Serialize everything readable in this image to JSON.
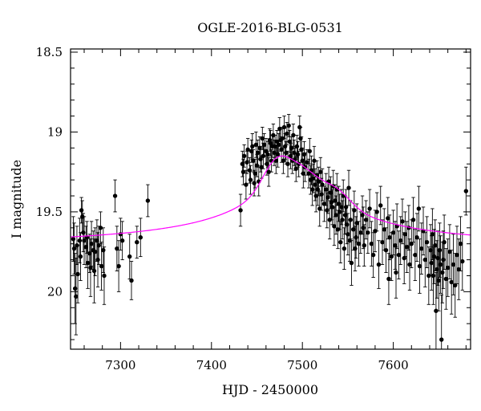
{
  "chart_data": {
    "type": "scatter",
    "title": "OGLE-2016-BLG-0531",
    "xlabel": "HJD - 2450000",
    "ylabel": "I magnitude",
    "xlim": [
      7245,
      7685
    ],
    "ylim": [
      20.36,
      18.48
    ],
    "y_inverted": true,
    "x_ticks": [
      7300,
      7400,
      7500,
      7600
    ],
    "y_ticks": [
      18.5,
      19,
      19.5,
      20
    ],
    "y_tick_labels": [
      "18.5",
      "19",
      "19.5",
      "20"
    ],
    "grid": false,
    "colors": {
      "points": "#000000",
      "model": "#ff00ff",
      "axes": "#000000"
    },
    "model_curve": {
      "name": "",
      "baseline": 19.665,
      "rise_amplitude": 0.52,
      "peak_time": 7495,
      "width_before": 40,
      "width_after": 35,
      "bump_amplitude": 0.13,
      "bump_time": 7470,
      "bump_width": 14,
      "shoulder_amplitude": 0.06,
      "shoulder_time": 7540,
      "shoulder_width": 14
    },
    "series": [
      {
        "name": "",
        "points": [
          [
            7248,
            19.67,
            0.14
          ],
          [
            7249,
            19.73,
            0.16
          ],
          [
            7250,
            19.98,
            0.22
          ],
          [
            7251,
            20.03,
            0.24
          ],
          [
            7252,
            19.71,
            0.12
          ],
          [
            7253,
            19.89,
            0.18
          ],
          [
            7255,
            19.68,
            0.14
          ],
          [
            7256,
            19.78,
            0.15
          ],
          [
            7257,
            19.49,
            0.08
          ],
          [
            7258,
            19.53,
            0.1
          ],
          [
            7259,
            19.63,
            0.12
          ],
          [
            7260,
            19.68,
            0.15
          ],
          [
            7262,
            19.72,
            0.13
          ],
          [
            7263,
            19.66,
            0.1
          ],
          [
            7264,
            19.82,
            0.16
          ],
          [
            7266,
            19.76,
            0.12
          ],
          [
            7267,
            19.85,
            0.18
          ],
          [
            7268,
            19.7,
            0.14
          ],
          [
            7270,
            19.74,
            0.12
          ],
          [
            7271,
            19.87,
            0.2
          ],
          [
            7272,
            19.75,
            0.15
          ],
          [
            7274,
            19.68,
            0.13
          ],
          [
            7275,
            19.8,
            0.17
          ],
          [
            7276,
            19.71,
            0.12
          ],
          [
            7278,
            19.6,
            0.1
          ],
          [
            7279,
            19.84,
            0.15
          ],
          [
            7281,
            19.74,
            0.14
          ],
          [
            7282,
            19.9,
            0.18
          ],
          [
            7294,
            19.4,
            0.1
          ],
          [
            7296,
            19.73,
            0.14
          ],
          [
            7298,
            19.84,
            0.16
          ],
          [
            7300,
            19.64,
            0.1
          ],
          [
            7302,
            19.68,
            0.12
          ],
          [
            7310,
            19.78,
            0.14
          ],
          [
            7312,
            19.93,
            0.12
          ],
          [
            7318,
            19.69,
            0.1
          ],
          [
            7322,
            19.66,
            0.12
          ],
          [
            7330,
            19.43,
            0.1
          ],
          [
            7432,
            19.49,
            0.1
          ],
          [
            7434,
            19.2,
            0.08
          ],
          [
            7435,
            19.25,
            0.08
          ],
          [
            7436,
            19.15,
            0.07
          ],
          [
            7438,
            19.33,
            0.09
          ],
          [
            7439,
            19.19,
            0.07
          ],
          [
            7440,
            19.11,
            0.07
          ],
          [
            7442,
            19.24,
            0.08
          ],
          [
            7443,
            19.3,
            0.09
          ],
          [
            7444,
            19.12,
            0.07
          ],
          [
            7445,
            19.09,
            0.08
          ],
          [
            7446,
            19.18,
            0.07
          ],
          [
            7447,
            19.32,
            0.08
          ],
          [
            7448,
            19.26,
            0.09
          ],
          [
            7449,
            19.08,
            0.08
          ],
          [
            7450,
            19.21,
            0.07
          ],
          [
            7451,
            19.13,
            0.08
          ],
          [
            7452,
            19.31,
            0.09
          ],
          [
            7453,
            19.1,
            0.07
          ],
          [
            7454,
            19.17,
            0.08
          ],
          [
            7455,
            19.22,
            0.07
          ],
          [
            7456,
            19.04,
            0.07
          ],
          [
            7457,
            19.15,
            0.08
          ],
          [
            7458,
            19.08,
            0.07
          ],
          [
            7460,
            19.12,
            0.08
          ],
          [
            7461,
            19.2,
            0.07
          ],
          [
            7462,
            19.14,
            0.08
          ],
          [
            7463,
            19.25,
            0.09
          ],
          [
            7464,
            19.05,
            0.07
          ],
          [
            7465,
            19.07,
            0.08
          ],
          [
            7466,
            19.18,
            0.07
          ],
          [
            7467,
            19.09,
            0.07
          ],
          [
            7468,
            19.02,
            0.07
          ],
          [
            7469,
            19.13,
            0.08
          ],
          [
            7470,
            19.09,
            0.07
          ],
          [
            7471,
            19.18,
            0.08
          ],
          [
            7472,
            19.06,
            0.07
          ],
          [
            7473,
            19.14,
            0.08
          ],
          [
            7474,
            19.08,
            0.07
          ],
          [
            7475,
            18.98,
            0.07
          ],
          [
            7476,
            19.05,
            0.07
          ],
          [
            7477,
            19.11,
            0.08
          ],
          [
            7478,
            19.04,
            0.07
          ],
          [
            7479,
            19.18,
            0.08
          ],
          [
            7480,
            18.97,
            0.07
          ],
          [
            7481,
            19.09,
            0.08
          ],
          [
            7482,
            19.13,
            0.07
          ],
          [
            7483,
            19.01,
            0.07
          ],
          [
            7484,
            19.2,
            0.08
          ],
          [
            7485,
            18.96,
            0.07
          ],
          [
            7486,
            19.06,
            0.07
          ],
          [
            7487,
            19.15,
            0.08
          ],
          [
            7488,
            19.1,
            0.07
          ],
          [
            7489,
            19.18,
            0.08
          ],
          [
            7490,
            19.02,
            0.07
          ],
          [
            7491,
            19.13,
            0.08
          ],
          [
            7492,
            19.17,
            0.07
          ],
          [
            7493,
            19.23,
            0.08
          ],
          [
            7494,
            19.09,
            0.07
          ],
          [
            7495,
            19.14,
            0.08
          ],
          [
            7496,
            19.2,
            0.08
          ],
          [
            7497,
            18.97,
            0.07
          ],
          [
            7498,
            19.04,
            0.07
          ],
          [
            7499,
            19.11,
            0.08
          ],
          [
            7500,
            19.18,
            0.08
          ],
          [
            7501,
            19.26,
            0.09
          ],
          [
            7502,
            19.14,
            0.08
          ],
          [
            7503,
            19.22,
            0.09
          ],
          [
            7505,
            19.19,
            0.08
          ],
          [
            7507,
            19.26,
            0.09
          ],
          [
            7508,
            19.12,
            0.08
          ],
          [
            7509,
            19.3,
            0.09
          ],
          [
            7510,
            19.24,
            0.09
          ],
          [
            7511,
            19.36,
            0.1
          ],
          [
            7512,
            19.29,
            0.09
          ],
          [
            7513,
            19.18,
            0.09
          ],
          [
            7514,
            19.33,
            0.1
          ],
          [
            7515,
            19.4,
            0.1
          ],
          [
            7516,
            19.27,
            0.09
          ],
          [
            7517,
            19.36,
            0.1
          ],
          [
            7518,
            19.31,
            0.09
          ],
          [
            7519,
            19.48,
            0.11
          ],
          [
            7520,
            19.25,
            0.09
          ],
          [
            7521,
            19.39,
            0.1
          ],
          [
            7522,
            19.33,
            0.1
          ],
          [
            7524,
            19.45,
            0.11
          ],
          [
            7526,
            19.36,
            0.1
          ],
          [
            7527,
            19.49,
            0.11
          ],
          [
            7528,
            19.41,
            0.1
          ],
          [
            7529,
            19.31,
            0.09
          ],
          [
            7530,
            19.55,
            0.12
          ],
          [
            7531,
            19.38,
            0.1
          ],
          [
            7532,
            19.44,
            0.11
          ],
          [
            7533,
            19.47,
            0.11
          ],
          [
            7534,
            19.34,
            0.1
          ],
          [
            7535,
            19.59,
            0.12
          ],
          [
            7536,
            19.43,
            0.1
          ],
          [
            7537,
            19.52,
            0.12
          ],
          [
            7538,
            19.36,
            0.1
          ],
          [
            7539,
            19.61,
            0.12
          ],
          [
            7540,
            19.45,
            0.11
          ],
          [
            7541,
            19.5,
            0.11
          ],
          [
            7542,
            19.69,
            0.13
          ],
          [
            7543,
            19.47,
            0.11
          ],
          [
            7544,
            19.55,
            0.12
          ],
          [
            7545,
            19.4,
            0.1
          ],
          [
            7546,
            19.73,
            0.13
          ],
          [
            7547,
            19.52,
            0.12
          ],
          [
            7548,
            19.47,
            0.11
          ],
          [
            7549,
            19.58,
            0.12
          ],
          [
            7550,
            19.64,
            0.13
          ],
          [
            7551,
            19.35,
            0.11
          ],
          [
            7552,
            19.68,
            0.13
          ],
          [
            7553,
            19.55,
            0.12
          ],
          [
            7554,
            19.82,
            0.14
          ],
          [
            7556,
            19.61,
            0.13
          ],
          [
            7557,
            19.49,
            0.12
          ],
          [
            7558,
            19.73,
            0.14
          ],
          [
            7559,
            19.66,
            0.13
          ],
          [
            7560,
            19.57,
            0.12
          ],
          [
            7562,
            19.7,
            0.14
          ],
          [
            7564,
            19.63,
            0.13
          ],
          [
            7566,
            19.52,
            0.12
          ],
          [
            7567,
            19.6,
            0.13
          ],
          [
            7568,
            19.71,
            0.13
          ],
          [
            7570,
            19.55,
            0.12
          ],
          [
            7572,
            19.63,
            0.13
          ],
          [
            7574,
            19.48,
            0.12
          ],
          [
            7576,
            19.7,
            0.14
          ],
          [
            7578,
            19.77,
            0.14
          ],
          [
            7580,
            19.62,
            0.13
          ],
          [
            7582,
            19.5,
            0.12
          ],
          [
            7584,
            19.83,
            0.15
          ],
          [
            7586,
            19.46,
            0.12
          ],
          [
            7588,
            19.69,
            0.14
          ],
          [
            7590,
            19.61,
            0.13
          ],
          [
            7592,
            19.74,
            0.14
          ],
          [
            7594,
            19.54,
            0.13
          ],
          [
            7595,
            19.92,
            0.16
          ],
          [
            7596,
            19.66,
            0.14
          ],
          [
            7598,
            19.78,
            0.15
          ],
          [
            7600,
            19.63,
            0.14
          ],
          [
            7602,
            19.71,
            0.15
          ],
          [
            7603,
            19.88,
            0.16
          ],
          [
            7604,
            19.59,
            0.14
          ],
          [
            7606,
            19.77,
            0.15
          ],
          [
            7608,
            19.68,
            0.15
          ],
          [
            7610,
            19.56,
            0.14
          ],
          [
            7612,
            19.79,
            0.16
          ],
          [
            7613,
            19.64,
            0.14
          ],
          [
            7615,
            19.72,
            0.16
          ],
          [
            7617,
            19.6,
            0.14
          ],
          [
            7618,
            19.83,
            0.16
          ],
          [
            7620,
            19.7,
            0.15
          ],
          [
            7622,
            19.55,
            0.14
          ],
          [
            7624,
            19.77,
            0.16
          ],
          [
            7626,
            19.66,
            0.15
          ],
          [
            7628,
            19.48,
            0.14
          ],
          [
            7629,
            19.84,
            0.17
          ],
          [
            7631,
            19.73,
            0.16
          ],
          [
            7633,
            19.62,
            0.15
          ],
          [
            7635,
            19.8,
            0.17
          ],
          [
            7637,
            19.69,
            0.16
          ],
          [
            7639,
            19.9,
            0.18
          ],
          [
            7641,
            19.74,
            0.16
          ],
          [
            7642,
            19.82,
            0.17
          ],
          [
            7643,
            19.64,
            0.16
          ],
          [
            7644,
            19.9,
            0.18
          ],
          [
            7645,
            19.78,
            0.17
          ],
          [
            7646,
            19.71,
            0.16
          ],
          [
            7647,
            20.12,
            0.24
          ],
          [
            7648,
            19.86,
            0.18
          ],
          [
            7649,
            19.79,
            0.17
          ],
          [
            7650,
            19.93,
            0.19
          ],
          [
            7651,
            19.74,
            0.17
          ],
          [
            7652,
            19.83,
            0.18
          ],
          [
            7653,
            20.3,
            0.28
          ],
          [
            7654,
            19.88,
            0.19
          ],
          [
            7655,
            19.8,
            0.18
          ],
          [
            7656,
            19.69,
            0.17
          ],
          [
            7658,
            19.92,
            0.19
          ],
          [
            7660,
            19.85,
            0.18
          ],
          [
            7662,
            19.75,
            0.17
          ],
          [
            7664,
            19.94,
            0.2
          ],
          [
            7666,
            19.83,
            0.19
          ],
          [
            7668,
            19.96,
            0.2
          ],
          [
            7670,
            19.77,
            0.18
          ],
          [
            7672,
            19.86,
            0.19
          ],
          [
            7674,
            19.7,
            0.17
          ],
          [
            7676,
            19.81,
            0.18
          ],
          [
            7680,
            19.37,
            0.15
          ]
        ]
      }
    ]
  }
}
